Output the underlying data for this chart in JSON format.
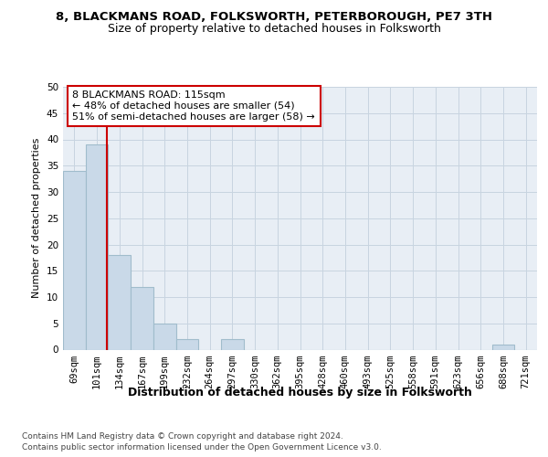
{
  "title1": "8, BLACKMANS ROAD, FOLKSWORTH, PETERBOROUGH, PE7 3TH",
  "title2": "Size of property relative to detached houses in Folksworth",
  "xlabel": "Distribution of detached houses by size in Folksworth",
  "ylabel": "Number of detached properties",
  "categories": [
    "69sqm",
    "101sqm",
    "134sqm",
    "167sqm",
    "199sqm",
    "232sqm",
    "264sqm",
    "297sqm",
    "330sqm",
    "362sqm",
    "395sqm",
    "428sqm",
    "460sqm",
    "493sqm",
    "525sqm",
    "558sqm",
    "591sqm",
    "623sqm",
    "656sqm",
    "688sqm",
    "721sqm"
  ],
  "values": [
    34,
    39,
    18,
    12,
    5,
    2,
    0,
    2,
    0,
    0,
    0,
    0,
    0,
    0,
    0,
    0,
    0,
    0,
    0,
    1,
    0
  ],
  "bar_color": "#c9d9e8",
  "bar_edge_color": "#a0bccc",
  "bar_linewidth": 0.8,
  "grid_color": "#c8d4e0",
  "background_color": "#e8eef5",
  "annotation_text_line1": "8 BLACKMANS ROAD: 115sqm",
  "annotation_text_line2": "← 48% of detached houses are smaller (54)",
  "annotation_text_line3": "51% of semi-detached houses are larger (58) →",
  "annotation_box_color": "#cc0000",
  "red_line_color": "#cc0000",
  "ylim": [
    0,
    50
  ],
  "yticks": [
    0,
    5,
    10,
    15,
    20,
    25,
    30,
    35,
    40,
    45,
    50
  ],
  "footer_line1": "Contains HM Land Registry data © Crown copyright and database right 2024.",
  "footer_line2": "Contains public sector information licensed under the Open Government Licence v3.0.",
  "title1_fontsize": 9.5,
  "title2_fontsize": 9,
  "tick_fontsize": 7.5,
  "ylabel_fontsize": 8,
  "xlabel_fontsize": 9,
  "footer_fontsize": 6.5,
  "annotation_fontsize": 8
}
